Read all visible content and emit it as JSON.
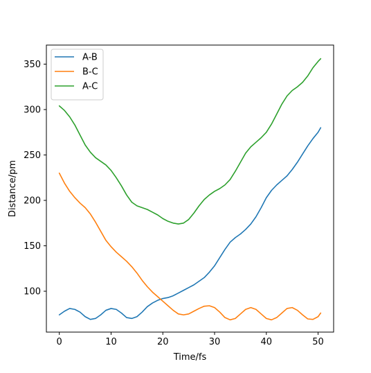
{
  "chart_data": {
    "type": "line",
    "title": "",
    "xlabel": "Time/fs",
    "ylabel": "Distance/pm",
    "xlim": [
      -2.5,
      53.0
    ],
    "ylim": [
      55,
      371
    ],
    "xticks": [
      0,
      10,
      20,
      30,
      40,
      50
    ],
    "yticks": [
      100,
      150,
      200,
      250,
      300,
      350
    ],
    "grid": false,
    "legend_position": "top-left",
    "series": [
      {
        "name": "A-B",
        "color": "#1f77b4",
        "points": [
          [
            0,
            74
          ],
          [
            1,
            78
          ],
          [
            2,
            81
          ],
          [
            3,
            80
          ],
          [
            4,
            77
          ],
          [
            5,
            72
          ],
          [
            6,
            69
          ],
          [
            7,
            70
          ],
          [
            8,
            74
          ],
          [
            9,
            79
          ],
          [
            10,
            81
          ],
          [
            11,
            80
          ],
          [
            12,
            76
          ],
          [
            13,
            71
          ],
          [
            14,
            70
          ],
          [
            15,
            72
          ],
          [
            16,
            77
          ],
          [
            17,
            83
          ],
          [
            18,
            87
          ],
          [
            19,
            90
          ],
          [
            20,
            92
          ],
          [
            21,
            93
          ],
          [
            22,
            95
          ],
          [
            23,
            98
          ],
          [
            24,
            101
          ],
          [
            25,
            104
          ],
          [
            26,
            107
          ],
          [
            27,
            111
          ],
          [
            28,
            115
          ],
          [
            29,
            121
          ],
          [
            30,
            128
          ],
          [
            31,
            137
          ],
          [
            32,
            146
          ],
          [
            33,
            154
          ],
          [
            34,
            159
          ],
          [
            35,
            163
          ],
          [
            36,
            168
          ],
          [
            37,
            174
          ],
          [
            38,
            182
          ],
          [
            39,
            192
          ],
          [
            40,
            203
          ],
          [
            41,
            211
          ],
          [
            42,
            217
          ],
          [
            43,
            222
          ],
          [
            44,
            227
          ],
          [
            45,
            234
          ],
          [
            46,
            242
          ],
          [
            47,
            251
          ],
          [
            48,
            260
          ],
          [
            49,
            268
          ],
          [
            50,
            275
          ],
          [
            50.5,
            280
          ]
        ]
      },
      {
        "name": "B-C",
        "color": "#ff7f0e",
        "points": [
          [
            0,
            230
          ],
          [
            1,
            219
          ],
          [
            2,
            210
          ],
          [
            3,
            203
          ],
          [
            4,
            197
          ],
          [
            5,
            192
          ],
          [
            6,
            185
          ],
          [
            7,
            176
          ],
          [
            8,
            166
          ],
          [
            9,
            156
          ],
          [
            10,
            149
          ],
          [
            11,
            143
          ],
          [
            12,
            138
          ],
          [
            13,
            133
          ],
          [
            14,
            127
          ],
          [
            15,
            120
          ],
          [
            16,
            112
          ],
          [
            17,
            105
          ],
          [
            18,
            99
          ],
          [
            19,
            94
          ],
          [
            20,
            89
          ],
          [
            21,
            84
          ],
          [
            22,
            79
          ],
          [
            23,
            75
          ],
          [
            24,
            74
          ],
          [
            25,
            75
          ],
          [
            26,
            78
          ],
          [
            27,
            81
          ],
          [
            28,
            83.5
          ],
          [
            29,
            84
          ],
          [
            30,
            82
          ],
          [
            31,
            77
          ],
          [
            32,
            71
          ],
          [
            33,
            68.5
          ],
          [
            34,
            70
          ],
          [
            35,
            75
          ],
          [
            36,
            80
          ],
          [
            37,
            82
          ],
          [
            38,
            80
          ],
          [
            39,
            75
          ],
          [
            40,
            70
          ],
          [
            41,
            68.5
          ],
          [
            42,
            71
          ],
          [
            43,
            76
          ],
          [
            44,
            81
          ],
          [
            45,
            82
          ],
          [
            46,
            79
          ],
          [
            47,
            74
          ],
          [
            48,
            69.5
          ],
          [
            49,
            69
          ],
          [
            50,
            72
          ],
          [
            50.5,
            76
          ]
        ]
      },
      {
        "name": "A-C",
        "color": "#2ca02c",
        "points": [
          [
            0,
            304
          ],
          [
            1,
            299
          ],
          [
            2,
            292
          ],
          [
            3,
            283
          ],
          [
            4,
            272
          ],
          [
            5,
            261
          ],
          [
            6,
            253
          ],
          [
            7,
            247
          ],
          [
            8,
            243
          ],
          [
            9,
            239
          ],
          [
            10,
            233
          ],
          [
            11,
            225
          ],
          [
            12,
            216
          ],
          [
            13,
            206
          ],
          [
            14,
            198
          ],
          [
            15,
            194
          ],
          [
            16,
            192
          ],
          [
            17,
            190
          ],
          [
            18,
            187
          ],
          [
            19,
            184
          ],
          [
            20,
            180
          ],
          [
            21,
            177
          ],
          [
            22,
            175
          ],
          [
            23,
            174
          ],
          [
            24,
            175
          ],
          [
            25,
            179
          ],
          [
            26,
            186
          ],
          [
            27,
            194
          ],
          [
            28,
            201
          ],
          [
            29,
            206
          ],
          [
            30,
            210
          ],
          [
            31,
            213
          ],
          [
            32,
            217
          ],
          [
            33,
            223
          ],
          [
            34,
            232
          ],
          [
            35,
            242
          ],
          [
            36,
            252
          ],
          [
            37,
            259
          ],
          [
            38,
            264
          ],
          [
            39,
            269
          ],
          [
            40,
            275
          ],
          [
            41,
            284
          ],
          [
            42,
            295
          ],
          [
            43,
            306
          ],
          [
            44,
            315
          ],
          [
            45,
            321
          ],
          [
            46,
            325
          ],
          [
            47,
            330
          ],
          [
            48,
            337
          ],
          [
            49,
            346
          ],
          [
            50,
            353
          ],
          [
            50.5,
            356
          ]
        ]
      }
    ]
  }
}
